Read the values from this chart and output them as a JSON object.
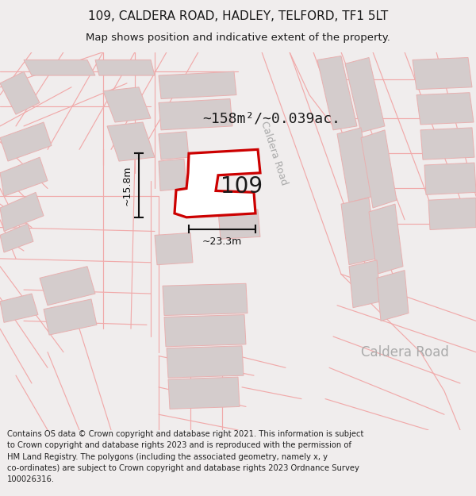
{
  "title_line1": "109, CALDERA ROAD, HADLEY, TELFORD, TF1 5LT",
  "title_line2": "Map shows position and indicative extent of the property.",
  "area_label": "~158m²/~0.039ac.",
  "number_label": "109",
  "dim_width": "~23.3m",
  "dim_height": "~15.8m",
  "road_label_diagonal": "Caldera Road",
  "road_label_bottom": "Caldera Road",
  "footer_text": "Contains OS data © Crown copyright and database right 2021. This information is subject\nto Crown copyright and database rights 2023 and is reproduced with the permission of\nHM Land Registry. The polygons (including the associated geometry, namely x, y\nco-ordinates) are subject to Crown copyright and database rights 2023 Ordnance Survey\n100026316.",
  "bg_color": "#f0eded",
  "map_bg": "#ffffff",
  "building_fill": "#d4cccc",
  "building_edge": "#e8b0b0",
  "road_line_color": "#f0aaaa",
  "highlight_fill": "#ffffff",
  "highlight_edge": "#cc0000",
  "text_color": "#1a1a1a",
  "dim_color": "#111111",
  "road_text_color": "#aaaaaa",
  "footer_color": "#222222",
  "title_fs": 11,
  "subtitle_fs": 9.5,
  "area_fs": 13,
  "number_fs": 20,
  "dim_fs": 9,
  "road_fs": 9,
  "footer_fs": 7.2
}
